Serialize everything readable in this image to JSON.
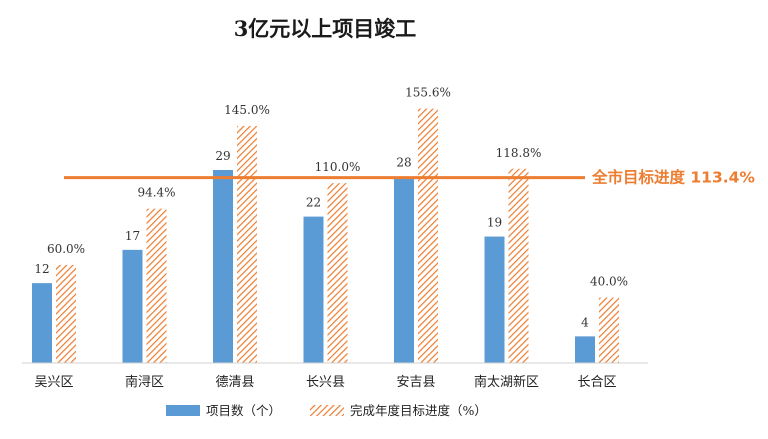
{
  "chart_data": {
    "type": "bar",
    "title": "3亿元以上项目竣工",
    "categories": [
      "吴兴区",
      "南浔区",
      "德清县",
      "长兴县",
      "安吉县",
      "南太湖新区",
      "长合区"
    ],
    "series": [
      {
        "name": "项目数（个）",
        "values": [
          12,
          17,
          29,
          22,
          28,
          19,
          4
        ],
        "labels": [
          "12",
          "17",
          "29",
          "22",
          "28",
          "19",
          "4"
        ],
        "color": "#5b9bd5",
        "style": "solid"
      },
      {
        "name": "完成年度目标进度（%）",
        "values": [
          60.0,
          94.4,
          145.0,
          110.0,
          155.6,
          118.8,
          40.0
        ],
        "labels": [
          "60.0%",
          "94.4%",
          "145.0%",
          "110.0%",
          "155.6%",
          "118.8%",
          "40.0%"
        ],
        "color": "#ed7d31",
        "style": "diagonal-hatch"
      }
    ],
    "reference_line": {
      "label": "全市目标进度 113.4%",
      "value": 113.4,
      "series": "完成年度目标进度（%）",
      "color": "#ed7d31"
    },
    "legend_position": "bottom",
    "grid": false,
    "xlabel": "",
    "ylabel": ""
  }
}
